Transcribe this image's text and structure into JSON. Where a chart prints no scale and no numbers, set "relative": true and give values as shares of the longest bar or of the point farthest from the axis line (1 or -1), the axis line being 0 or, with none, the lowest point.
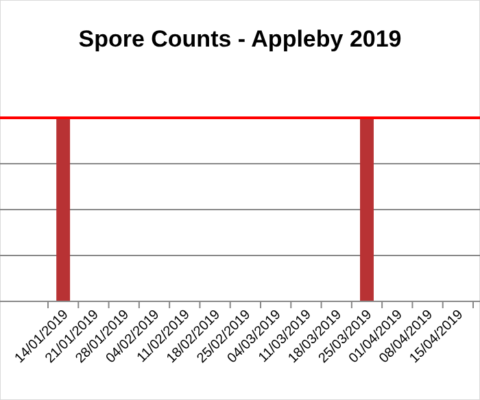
{
  "chart_data": {
    "type": "bar",
    "title": "Spore Counts - Appleby 2019",
    "relative": true,
    "categories": [
      "14/01/2019",
      "21/01/2019",
      "28/01/2019",
      "04/02/2019",
      "11/02/2019",
      "18/02/2019",
      "25/02/2019",
      "04/03/2019",
      "11/03/2019",
      "18/03/2019",
      "25/03/2019",
      "01/04/2019",
      "08/04/2019",
      "15/04/2019"
    ],
    "values": [
      1,
      0,
      0,
      0,
      0,
      0,
      0,
      0,
      0,
      0,
      1,
      0,
      0,
      0
    ],
    "color": "#b83234",
    "grid": "y",
    "ref_lines": [
      {
        "axis": "y",
        "value": 1,
        "color": "#ff0000"
      }
    ]
  }
}
